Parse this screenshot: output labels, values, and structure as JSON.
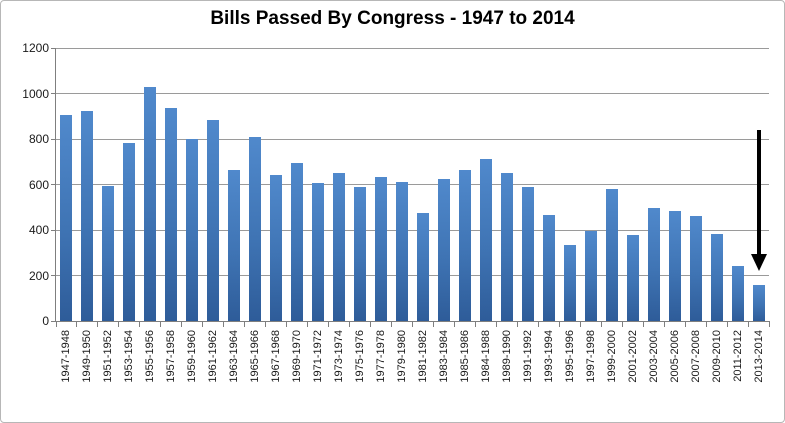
{
  "chart_data": {
    "type": "bar",
    "title": "Bills Passed By Congress - 1947 to 2014",
    "xlabel": "",
    "ylabel": "",
    "ylim": [
      0,
      1200
    ],
    "yticks": [
      0,
      200,
      400,
      600,
      800,
      1000,
      1200
    ],
    "grid": true,
    "legend": "none",
    "categories": [
      "1947-1948",
      "1949-1950",
      "1951-1952",
      "1953-1954",
      "1955-1956",
      "1957-1958",
      "1959-1960",
      "1961-1962",
      "1963-1964",
      "1965-1966",
      "1967-1968",
      "1969-1970",
      "1971-1972",
      "1973-1974",
      "1975-1976",
      "1977-1978",
      "1979-1980",
      "1981-1982",
      "1983-1984",
      "1985-1986",
      "1984-1988",
      "1989-1990",
      "1991-1992",
      "1993-1994",
      "1995-1996",
      "1997-1998",
      "1999-2000",
      "2001-2002",
      "2003-2004",
      "2005-2006",
      "2007-2008",
      "2009-2010",
      "2011-2012",
      "2013-2014"
    ],
    "values": [
      906,
      921,
      594,
      781,
      1028,
      936,
      800,
      885,
      666,
      810,
      640,
      695,
      607,
      649,
      588,
      633,
      613,
      473,
      623,
      664,
      713,
      650,
      590,
      465,
      333,
      394,
      580,
      377,
      498,
      482,
      460,
      383,
      240,
      160
    ],
    "annotation": {
      "type": "down-arrow",
      "target_category": "2013-2014"
    },
    "colors": {
      "bar_top": "#5089cc",
      "bar_mid": "#3f74b4",
      "bar_bottom": "#2e5c99",
      "grid": "#9a9a9a",
      "axis": "#7f7f7f",
      "arrow": "#000000"
    }
  }
}
